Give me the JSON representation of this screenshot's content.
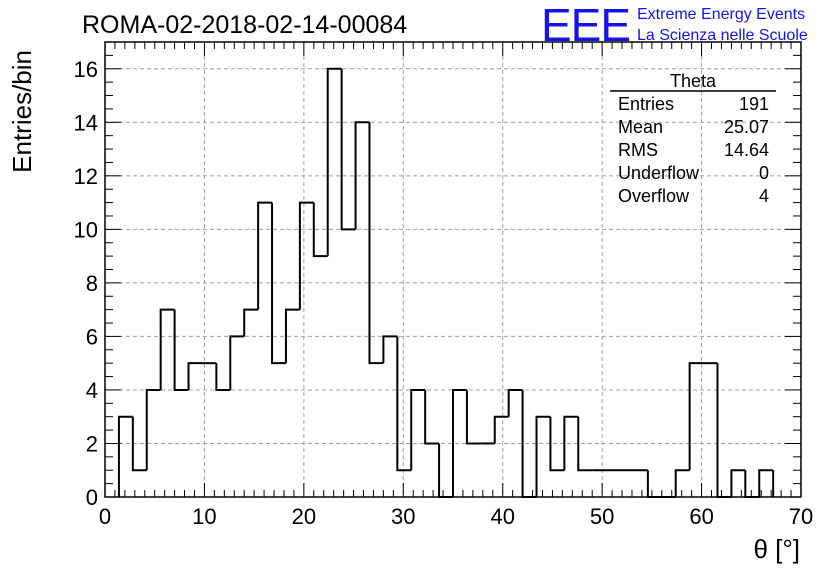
{
  "chart_data": {
    "type": "bar",
    "title": "ROMA-02-2018-02-14-00084",
    "xlabel": "θ [°]",
    "ylabel": "Entries/bin",
    "xlim": [
      0,
      70
    ],
    "ylim": [
      0,
      17
    ],
    "x_ticks": [
      0,
      10,
      20,
      30,
      40,
      50,
      60,
      70
    ],
    "y_ticks": [
      0,
      2,
      4,
      6,
      8,
      10,
      12,
      14,
      16
    ],
    "grid": true,
    "bin_width": 1.4,
    "bin_start": 1.4,
    "values": [
      3,
      1,
      4,
      7,
      4,
      5,
      5,
      4,
      6,
      7,
      11,
      5,
      7,
      11,
      9,
      16,
      10,
      14,
      5,
      6,
      1,
      4,
      2,
      0,
      4,
      2,
      2,
      3,
      4,
      0,
      3,
      1,
      3,
      1,
      1,
      1,
      1,
      1,
      0,
      0,
      1,
      5,
      5,
      0,
      1,
      0,
      1
    ],
    "stats_box": {
      "title": "Theta",
      "placement": "top-right",
      "rows": [
        {
          "label": "Entries",
          "value": "191"
        },
        {
          "label": "Mean",
          "value": "25.07"
        },
        {
          "label": "RMS",
          "value": "14.64"
        },
        {
          "label": "Underflow",
          "value": "0"
        },
        {
          "label": "Overflow",
          "value": "4"
        }
      ]
    }
  },
  "logo": {
    "mark": "EEE",
    "line1": "Extreme Energy Events",
    "line2": "La Scienza nelle Scuole",
    "color": "#1414e6"
  }
}
